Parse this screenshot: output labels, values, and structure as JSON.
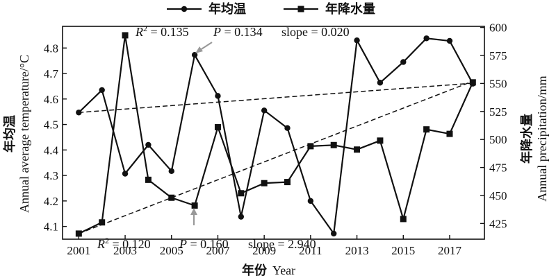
{
  "chart_data": {
    "type": "line",
    "xlabel_cn": "年份",
    "xlabel_en": "Year",
    "x_ticks": [
      2001,
      2003,
      2005,
      2007,
      2009,
      2011,
      2013,
      2015,
      2017
    ],
    "xlim": [
      2000.3,
      2018.5
    ],
    "left_axis": {
      "label_cn": "年均温",
      "label_en": "Annual average temperature/°C",
      "ylim": [
        4.05,
        4.885
      ],
      "ticks": [
        4.1,
        4.2,
        4.3,
        4.4,
        4.5,
        4.6,
        4.7,
        4.8
      ]
    },
    "right_axis": {
      "label_cn": "年降水量",
      "label_en": "Annual precipitation/mm",
      "ylim": [
        411,
        601
      ],
      "ticks": [
        425,
        450,
        475,
        500,
        525,
        550,
        575,
        600
      ]
    },
    "series": [
      {
        "name": "年均温",
        "axis": "left",
        "marker": "circle",
        "x": [
          2001,
          2002,
          2003,
          2004,
          2005,
          2006,
          2007,
          2008,
          2009,
          2010,
          2011,
          2012,
          2013,
          2014,
          2015,
          2016,
          2017,
          2018
        ],
        "values": [
          4.547,
          4.635,
          4.307,
          4.42,
          4.317,
          4.773,
          4.612,
          4.138,
          4.555,
          4.486,
          4.2,
          4.072,
          4.83,
          4.664,
          4.745,
          4.838,
          4.828,
          4.66
        ],
        "trend": {
          "from": [
            2001,
            4.547
          ],
          "to": [
            2018,
            4.662
          ]
        }
      },
      {
        "name": "年降水量",
        "axis": "right",
        "marker": "square",
        "x": [
          2001,
          2002,
          2003,
          2004,
          2005,
          2006,
          2007,
          2008,
          2009,
          2010,
          2011,
          2012,
          2013,
          2014,
          2015,
          2016,
          2017,
          2018
        ],
        "values": [
          416,
          426,
          593,
          464,
          448,
          441,
          511,
          452,
          461,
          462,
          494,
          495,
          491,
          499,
          429,
          509,
          505,
          551
        ],
        "trend": {
          "from": [
            2001,
            416
          ],
          "to": [
            2018,
            552
          ]
        }
      }
    ],
    "annotations": {
      "top": {
        "r2_label": "R",
        "r2_sup": "2",
        "r2_value": " = 0.135",
        "p_label": "P",
        "p_value": " = 0.134",
        "slope": "slope = 0.020"
      },
      "bottom": {
        "r2_label": "R",
        "r2_sup": "2",
        "r2_value": " = 0.120",
        "p_label": "P",
        "p_value": " = 0.160",
        "slope": "slope = 2.940"
      }
    }
  },
  "colors": {
    "line": "#111111",
    "trend": "#111111",
    "arrow": "#999999"
  }
}
